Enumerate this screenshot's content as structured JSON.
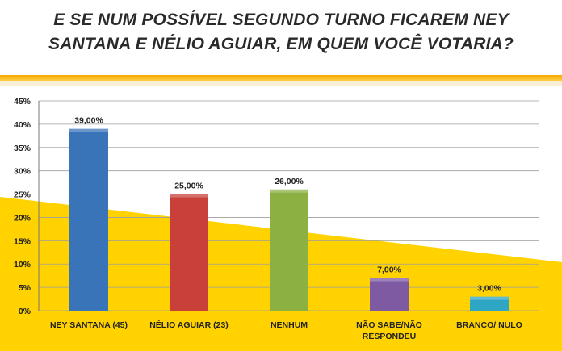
{
  "title": {
    "line1": "E SE NUM POSSÍVEL SEGUNDO TURNO FICAREM NEY",
    "line2": "SANTANA E NÉLIO AGUIAR, EM QUEM VOCÊ VOTARIA?"
  },
  "colors": {
    "background_band": "#ffd200",
    "grid": "#9e9e9e"
  },
  "chart_data": {
    "type": "bar",
    "categories": [
      [
        "NEY SANTANA (45)"
      ],
      [
        "NÉLIO AGUIAR (23)"
      ],
      [
        "NENHUM"
      ],
      [
        "NÃO SABE/NÃO",
        "RESPONDEU"
      ],
      [
        "BRANCO/ NULO"
      ]
    ],
    "values": [
      39,
      25,
      26,
      7,
      3
    ],
    "data_labels": [
      "39,00%",
      "25,00%",
      "26,00%",
      "7,00%",
      "3,00%"
    ],
    "colors": [
      "#3a74b8",
      "#c9403b",
      "#8db043",
      "#7e5aa3",
      "#2fa6c4"
    ],
    "ylim": [
      0,
      45
    ],
    "yticks": [
      "0%",
      "5%",
      "10%",
      "15%",
      "20%",
      "25%",
      "30%",
      "35%",
      "40%",
      "45%"
    ],
    "grid": true,
    "xlabel": "",
    "ylabel": ""
  }
}
